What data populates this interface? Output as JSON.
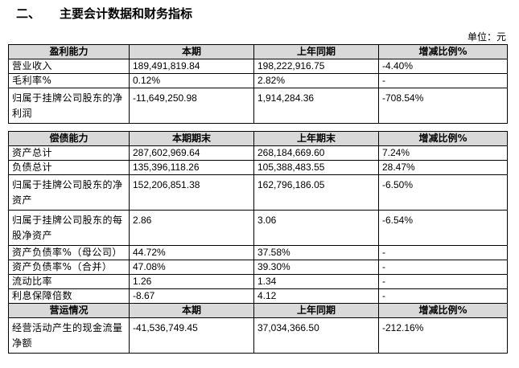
{
  "section_number": "二、",
  "section_title": "主要会计数据和财务指标",
  "unit_label": "单位：元",
  "profit": {
    "headers": [
      "盈利能力",
      "本期",
      "上年同期",
      "增减比例%"
    ],
    "rows": [
      [
        "营业收入",
        "189,491,819.84",
        "198,222,916.75",
        "-4.40%"
      ],
      [
        "毛利率%",
        "0.12%",
        "2.82%",
        "-"
      ],
      [
        "归属于挂牌公司股东的净利润",
        "-11,649,250.98",
        "1,914,284.36",
        "-708.54%"
      ]
    ]
  },
  "solvency": {
    "headers": [
      "偿债能力",
      "本期期末",
      "上年期末",
      "增减比例%"
    ],
    "rows": [
      [
        "资产总计",
        "287,602,969.64",
        "268,184,669.60",
        "7.24%"
      ],
      [
        "负债总计",
        "135,396,118.26",
        "105,388,483.55",
        "28.47%"
      ],
      [
        "归属于挂牌公司股东的净资产",
        "152,206,851.38",
        "162,796,186.05",
        "-6.50%"
      ],
      [
        "归属于挂牌公司股东的每股净资产",
        "2.86",
        "3.06",
        "-6.54%"
      ],
      [
        "资产负债率%（母公司）",
        "44.72%",
        "37.58%",
        "-"
      ],
      [
        "资产负债率%（合并）",
        "47.08%",
        "39.30%",
        "-"
      ],
      [
        "流动比率",
        "1.26",
        "1.34",
        "-"
      ],
      [
        "利息保障倍数",
        "-8.67",
        "4.12",
        "-"
      ]
    ]
  },
  "operations": {
    "headers": [
      "营运情况",
      "本期",
      "上年同期",
      "增减比例%"
    ],
    "rows": [
      [
        "经营活动产生的现金流量净额",
        "-41,536,749.45",
        "37,034,366.50",
        "-212.16%"
      ]
    ]
  }
}
